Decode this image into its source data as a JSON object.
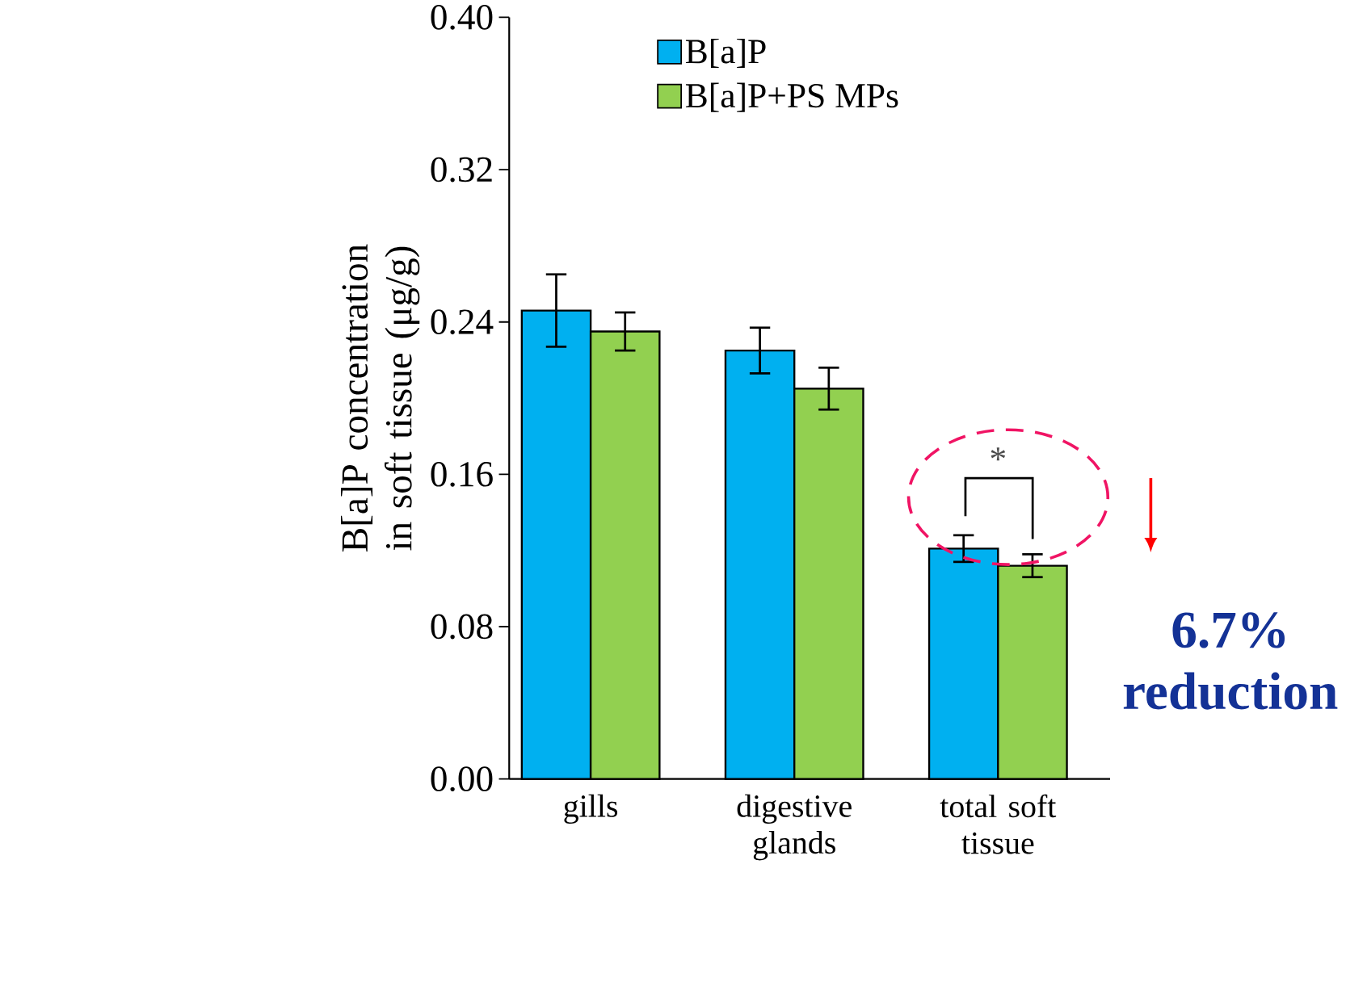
{
  "chart_data": {
    "type": "bar",
    "ylabel": "B[a]P concentration in soft tissue (μg/g)",
    "categories": [
      "gills",
      "digestive glands",
      "total soft tissue"
    ],
    "series": [
      {
        "name": "B[a]P",
        "color": "#00b0f0",
        "values": [
          0.246,
          0.225,
          0.121
        ],
        "errors": [
          0.019,
          0.012,
          0.007
        ]
      },
      {
        "name": "B[a]P+PS MPs",
        "color": "#92d050",
        "values": [
          0.235,
          0.205,
          0.112
        ],
        "errors": [
          0.01,
          0.011,
          0.006
        ]
      }
    ],
    "ylim": [
      0,
      0.4
    ],
    "yticks": [
      {
        "value": 0,
        "label": "0.00"
      },
      {
        "value": 0.08,
        "label": "0.08"
      },
      {
        "value": 0.16,
        "label": "0.16"
      },
      {
        "value": 0.24,
        "label": "0.24"
      },
      {
        "value": 0.32,
        "label": "0.32"
      },
      {
        "value": 0.4,
        "label": "0.40"
      }
    ],
    "legend": "top",
    "grid": false,
    "annotations": [
      "*",
      "6.7% reduction"
    ]
  }
}
